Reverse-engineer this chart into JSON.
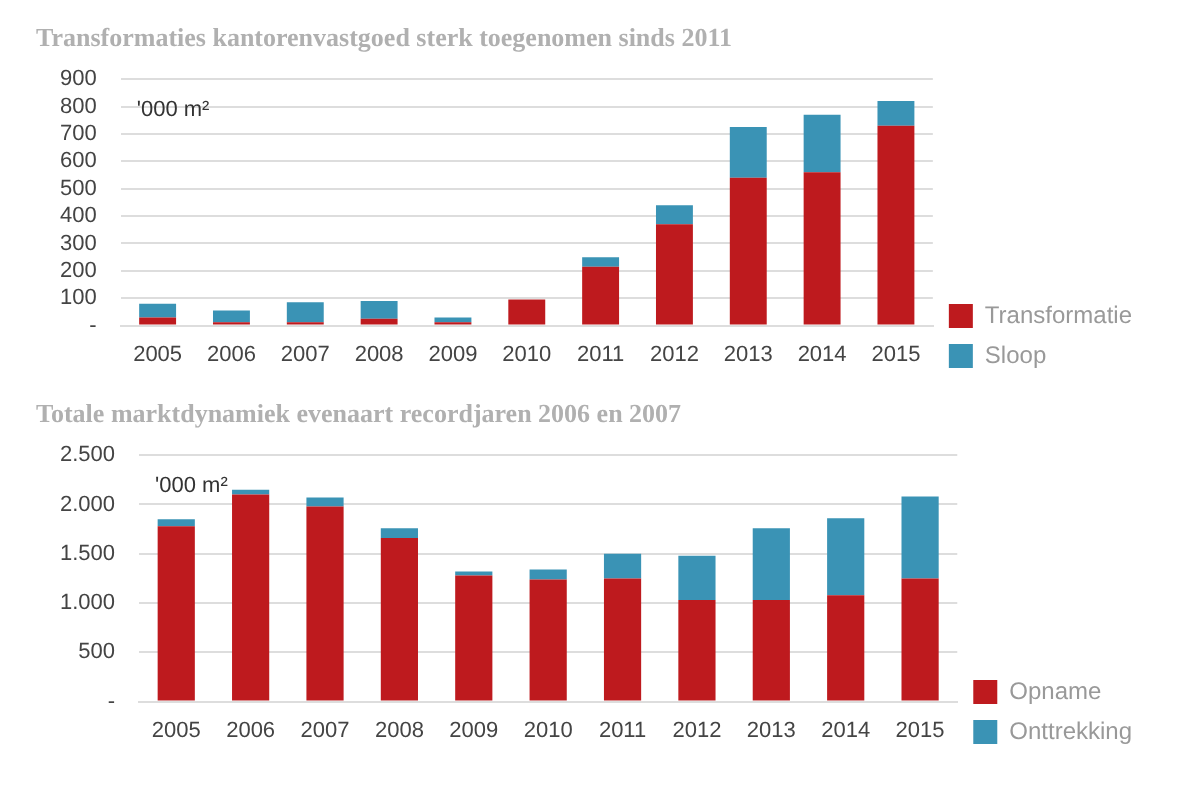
{
  "chart_data": [
    {
      "type": "bar",
      "title": "Transformaties kantorenvastgoed sterk toegenomen sinds 2011",
      "categories": [
        "2005",
        "2006",
        "2007",
        "2008",
        "2009",
        "2010",
        "2011",
        "2012",
        "2013",
        "2014",
        "2015"
      ],
      "stacked": true,
      "series": [
        {
          "name": "Transformatie",
          "color": "#be1a1e",
          "values": [
            30,
            12,
            12,
            25,
            12,
            95,
            215,
            370,
            540,
            560,
            730
          ]
        },
        {
          "name": "Sloop",
          "color": "#3a93b5",
          "values": [
            50,
            43,
            73,
            65,
            18,
            null,
            35,
            70,
            185,
            210,
            90
          ]
        }
      ],
      "ylim": [
        0,
        900
      ],
      "yticks": [
        {
          "value": 0,
          "label": "-"
        },
        100,
        200,
        300,
        400,
        500,
        600,
        700,
        800,
        900
      ],
      "grid": "y",
      "legend": "bottom right",
      "annotations": [
        "'000 m²"
      ]
    },
    {
      "type": "bar",
      "title": "Totale marktdynamiek evenaart recordjaren 2006 en 2007",
      "categories": [
        "2005",
        "2006",
        "2007",
        "2008",
        "2009",
        "2010",
        "2011",
        "2012",
        "2013",
        "2014",
        "2015"
      ],
      "stacked": true,
      "series": [
        {
          "name": "Opname",
          "color": "#be1a1e",
          "values": [
            1780,
            2100,
            1980,
            1660,
            1280,
            1240,
            1250,
            1030,
            1030,
            1080,
            1250
          ]
        },
        {
          "name": "Onttrekking",
          "color": "#3a93b5",
          "values": [
            70,
            50,
            90,
            100,
            40,
            100,
            250,
            450,
            730,
            780,
            830
          ]
        }
      ],
      "ylim": [
        0,
        2500
      ],
      "yticks": [
        {
          "value": 0,
          "label": "-"
        },
        {
          "value": 500,
          "label": "500"
        },
        {
          "value": 1000,
          "label": "1.000"
        },
        {
          "value": 1500,
          "label": "1.500"
        },
        {
          "value": 2000,
          "label": "2.000"
        },
        {
          "value": 2500,
          "label": "2.500"
        }
      ],
      "grid": "y",
      "legend": "bottom right",
      "annotations": [
        "'000 m²"
      ]
    }
  ]
}
